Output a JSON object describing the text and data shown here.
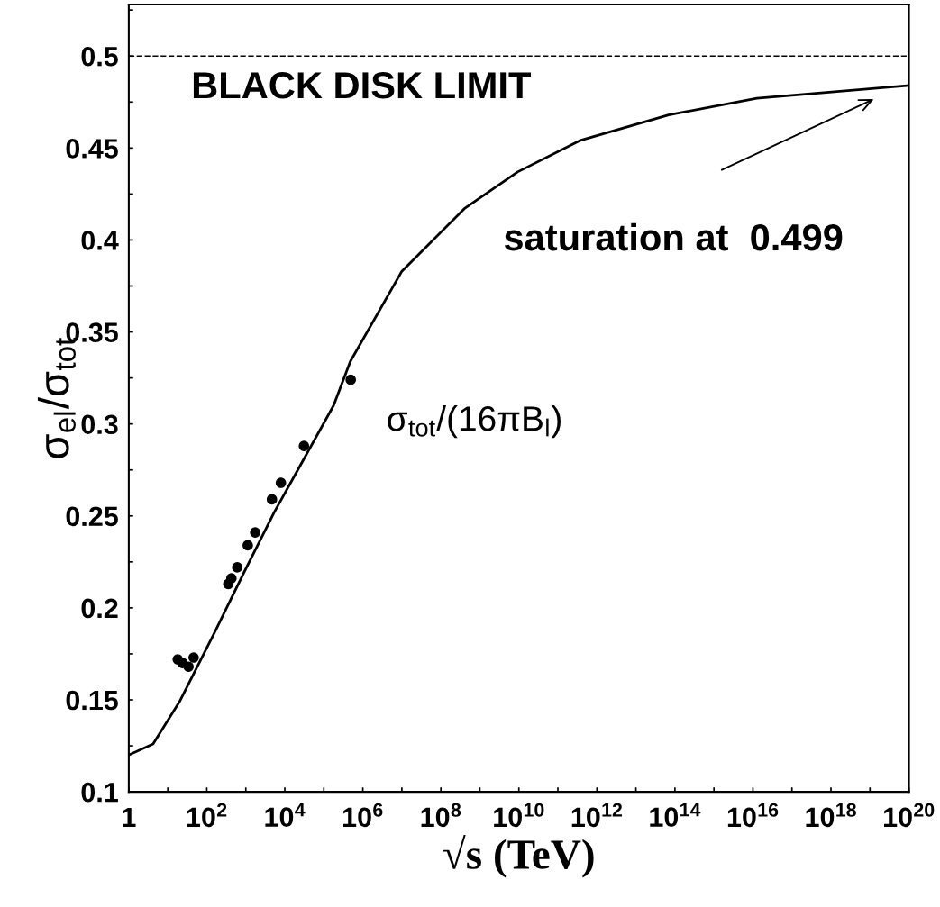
{
  "chart_data": {
    "type": "scatter",
    "xlabel": "√s (TeV)",
    "ylabel": "σ$_{el}$/σ$_{tot}$",
    "log": "x",
    "xlim": [
      1,
      1e+20
    ],
    "ylim": [
      0.1,
      0.528
    ],
    "xticks": [
      {
        "value": 1,
        "label": "1"
      },
      {
        "value": 10,
        "label": null
      },
      {
        "value": 100.0,
        "label": "10$^{2}$"
      },
      {
        "value": 1000.0,
        "label": null
      },
      {
        "value": 10000.0,
        "label": "10$^{4}$"
      },
      {
        "value": 100000.0,
        "label": null
      },
      {
        "value": 1000000.0,
        "label": "10$^{6}$"
      },
      {
        "value": 10000000.0,
        "label": null
      },
      {
        "value": 100000000.0,
        "label": "10$^{8}$"
      },
      {
        "value": 1000000000.0,
        "label": null
      },
      {
        "value": 10000000000.0,
        "label": "10$^{10}$"
      },
      {
        "value": 100000000000.0,
        "label": null
      },
      {
        "value": 1000000000000.0,
        "label": "10$^{12}$"
      },
      {
        "value": 10000000000000.0,
        "label": null
      },
      {
        "value": 100000000000000.0,
        "label": "10$^{14}$"
      },
      {
        "value": 1000000000000000.0,
        "label": null
      },
      {
        "value": 1e+16,
        "label": "10$^{16}$"
      },
      {
        "value": 1e+17,
        "label": null
      },
      {
        "value": 1e+18,
        "label": "10$^{18}$"
      },
      {
        "value": 1e+19,
        "label": null
      },
      {
        "value": 1e+20,
        "label": "10$^{20}$"
      }
    ],
    "yticks": [
      {
        "value": 0.1,
        "label": "0.1"
      },
      {
        "value": 0.125,
        "label": null
      },
      {
        "value": 0.15,
        "label": "0.15"
      },
      {
        "value": 0.175,
        "label": null
      },
      {
        "value": 0.2,
        "label": "0.2"
      },
      {
        "value": 0.225,
        "label": null
      },
      {
        "value": 0.25,
        "label": "0.25"
      },
      {
        "value": 0.275,
        "label": null
      },
      {
        "value": 0.3,
        "label": "0.3"
      },
      {
        "value": 0.325,
        "label": null
      },
      {
        "value": 0.35,
        "label": "0.35"
      },
      {
        "value": 0.375,
        "label": null
      },
      {
        "value": 0.4,
        "label": "0.4"
      },
      {
        "value": 0.425,
        "label": null
      },
      {
        "value": 0.45,
        "label": "0.45"
      },
      {
        "value": 0.475,
        "label": null
      },
      {
        "value": 0.5,
        "label": "0.5"
      },
      {
        "value": 0.525,
        "label": null
      }
    ],
    "grid": false,
    "legend": false,
    "series": [
      {
        "color": "#000000",
        "marker": "circle",
        "x": [
          18,
          24,
          34,
          46,
          355,
          427,
          603,
          1122,
          1738,
          4677,
          7943,
          30903,
          489779
        ],
        "values": [
          0.172,
          0.17,
          0.168,
          0.173,
          0.213,
          0.216,
          0.222,
          0.234,
          0.241,
          0.259,
          0.268,
          0.288,
          0.324
        ]
      },
      {
        "type": "line",
        "color": "#000000",
        "marker": "none",
        "line_style": "solid",
        "x": [
          1,
          4.2,
          20,
          162,
          933,
          5370,
          30903,
          177828,
          478630,
          10000000.0,
          400000000.0,
          9300000000.0,
          360000000000.0,
          69000000000000.0,
          1.26e+16,
          1e+20
        ],
        "values": [
          0.12,
          0.126,
          0.149,
          0.187,
          0.22,
          0.252,
          0.281,
          0.31,
          0.334,
          0.383,
          0.417,
          0.437,
          0.454,
          0.468,
          0.477,
          0.484
        ]
      }
    ],
    "ref_lines": [
      {
        "axis": "y",
        "value": 0.5,
        "label": "BLACK DISK LIMIT",
        "color": "#000000",
        "line_style": "dashed"
      }
    ],
    "annotations": [
      "saturation at  0.499",
      "σ$_{tot}$/(16πB$_{l}$)"
    ]
  }
}
